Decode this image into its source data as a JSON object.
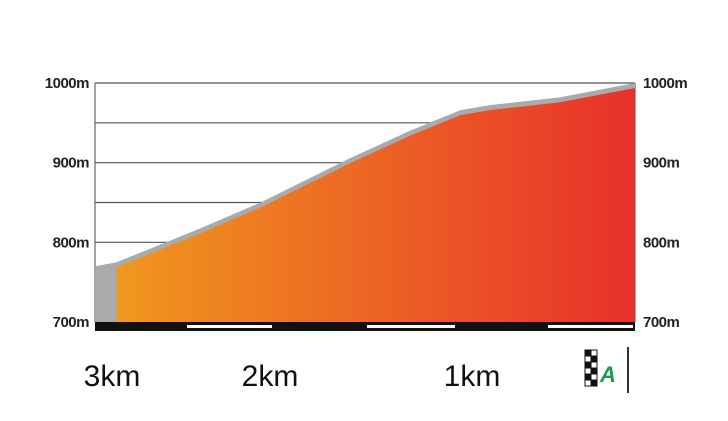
{
  "chart_data": {
    "type": "area",
    "title": "",
    "xlabel": "",
    "ylabel": "",
    "x_unit": "km to finish",
    "x": [
      3.0,
      2.88,
      2.42,
      2.08,
      1.58,
      1.25,
      0.97,
      0.81,
      0.42,
      0.0
    ],
    "values": [
      770,
      775,
      817,
      850,
      906,
      940,
      966,
      972,
      982,
      1000
    ],
    "ylim": [
      700,
      1000
    ],
    "xlim": [
      3,
      0
    ],
    "y_ticks": [
      "700m",
      "800m",
      "900m",
      "1000m"
    ],
    "y_tick_values": [
      700,
      800,
      900,
      1000
    ],
    "gridlines": [
      750,
      800,
      850,
      900,
      950,
      1000
    ],
    "x_ticks": [
      "3km",
      "2km",
      "1km"
    ],
    "x_tick_values": [
      3,
      2,
      1
    ],
    "finish_marker": "A",
    "colors": {
      "fill_start": "#f0981e",
      "fill_end": "#e8302a",
      "edge": "#a8aaac",
      "finish_letter": "#1e9a4a"
    }
  }
}
